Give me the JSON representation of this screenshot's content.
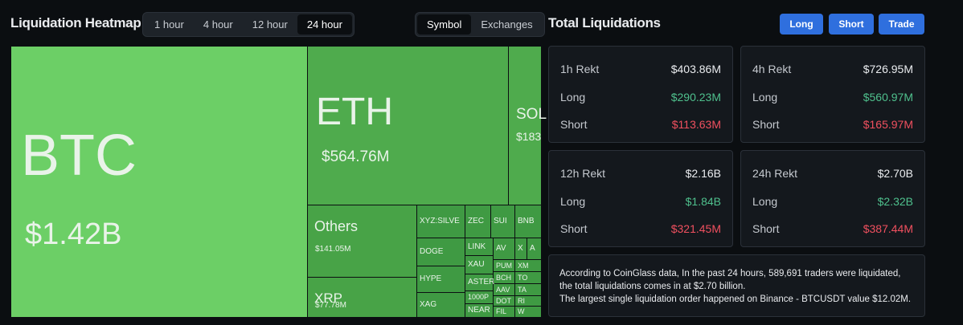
{
  "header": {
    "title": "Liquidation Heatmap",
    "time_tabs": [
      "1 hour",
      "4 hour",
      "12 hour",
      "24 hour"
    ],
    "active_time_tab": 3,
    "view_tabs": [
      "Symbol",
      "Exchanges"
    ],
    "active_view_tab": 0
  },
  "heatmap": {
    "tiles": [
      {
        "label": "BTC",
        "value": "$1.42B"
      },
      {
        "label": "ETH",
        "value": "$564.76M"
      },
      {
        "label": "SOL",
        "value": "$183"
      },
      {
        "label": "Others",
        "value": "$141.05M"
      },
      {
        "label": "XRP",
        "value": "$77.78M"
      },
      {
        "label": "XYZ:SILVE"
      },
      {
        "label": "ZEC"
      },
      {
        "label": "SUI"
      },
      {
        "label": "BNB"
      },
      {
        "label": "DOGE"
      },
      {
        "label": "HYPE"
      },
      {
        "label": "XAG"
      },
      {
        "label": "LINK"
      },
      {
        "label": "XAU"
      },
      {
        "label": "ASTER"
      },
      {
        "label": "1000P"
      },
      {
        "label": "NEAR"
      },
      {
        "label": "AV"
      },
      {
        "label": "X"
      },
      {
        "label": "A"
      },
      {
        "label": "PUM"
      },
      {
        "label": "BCH"
      },
      {
        "label": "AAV"
      },
      {
        "label": "DOT"
      },
      {
        "label": "FIL"
      },
      {
        "label": "XM"
      },
      {
        "label": "TO"
      },
      {
        "label": "TA"
      },
      {
        "label": "RI"
      },
      {
        "label": "W"
      }
    ]
  },
  "summary": {
    "title": "Total Liquidations",
    "buttons": [
      "Long",
      "Short",
      "Trade"
    ],
    "cards": [
      {
        "title": "1h Rekt",
        "total": "$403.86M",
        "rows": [
          {
            "label": "Long",
            "value": "$290.23M"
          },
          {
            "label": "Short",
            "value": "$113.63M"
          }
        ]
      },
      {
        "title": "4h Rekt",
        "total": "$726.95M",
        "rows": [
          {
            "label": "Long",
            "value": "$560.97M"
          },
          {
            "label": "Short",
            "value": "$165.97M"
          }
        ]
      },
      {
        "title": "12h Rekt",
        "total": "$2.16B",
        "rows": [
          {
            "label": "Long",
            "value": "$1.84B"
          },
          {
            "label": "Short",
            "value": "$321.45M"
          }
        ]
      },
      {
        "title": "24h Rekt",
        "total": "$2.70B",
        "rows": [
          {
            "label": "Long",
            "value": "$2.32B"
          },
          {
            "label": "Short",
            "value": "$387.44M"
          }
        ]
      }
    ],
    "notes": [
      "According to CoinGlass data, In the past 24 hours, 589,691 traders were liquidated, the total liquidations comes in at $2.70 billion.",
      "The largest single liquidation order happened on Binance - BTCUSDT value $12.02M."
    ]
  }
}
